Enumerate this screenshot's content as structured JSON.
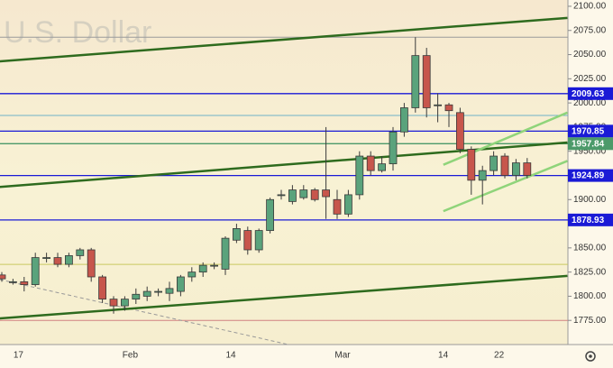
{
  "chart_data": {
    "type": "candlestick",
    "watermark": "U.S. Dollar",
    "ylim": [
      1750,
      2106.5
    ],
    "yticks": [
      {
        "value": 1775,
        "label": "1775.00"
      },
      {
        "value": 1800,
        "label": "1800.00"
      },
      {
        "value": 1825,
        "label": "1825.00"
      },
      {
        "value": 1850,
        "label": "1850.00"
      },
      {
        "value": 1875,
        "label": "1875.00"
      },
      {
        "value": 1900,
        "label": "1900.00"
      },
      {
        "value": 1925,
        "label": "1925.00"
      },
      {
        "value": 1950,
        "label": "1950.00"
      },
      {
        "value": 1975,
        "label": "1975.00"
      },
      {
        "value": 2000,
        "label": "2000.00"
      },
      {
        "value": 2025,
        "label": "2025.00"
      },
      {
        "value": 2050,
        "label": "2050.00"
      },
      {
        "value": 2075,
        "label": "2075.00"
      },
      {
        "value": 2100,
        "label": "2100.00"
      }
    ],
    "up_color": "#5aa37c",
    "down_color": "#c7564c",
    "categories": [
      null,
      "17",
      null,
      null,
      null,
      null,
      null,
      null,
      null,
      null,
      null,
      "Feb",
      null,
      null,
      null,
      null,
      null,
      null,
      null,
      null,
      "14",
      null,
      null,
      null,
      null,
      null,
      null,
      null,
      null,
      null,
      "Mar",
      null,
      null,
      null,
      null,
      null,
      null,
      null,
      null,
      "14",
      null,
      null,
      null,
      null,
      "22",
      null,
      null,
      null
    ],
    "open": [
      1822,
      1815,
      1815,
      1812,
      1840,
      1840,
      1833,
      1842,
      1848,
      1820,
      1797,
      1790,
      1797,
      1800,
      1805,
      1803,
      1805,
      1820,
      1825,
      1832,
      1828,
      1858,
      1868,
      1848,
      1868,
      1905,
      1898,
      1902,
      1910,
      1910,
      1900,
      1885,
      1905,
      1945,
      1930,
      1937,
      1970,
      1995,
      2049,
      1998,
      1998,
      1990,
      1952,
      1920,
      1930,
      1945,
      1925,
      1938
    ],
    "high": [
      1825,
      1818,
      1820,
      1845,
      1845,
      1845,
      1845,
      1850,
      1850,
      1822,
      1800,
      1800,
      1808,
      1810,
      1808,
      1815,
      1822,
      1830,
      1835,
      1835,
      1862,
      1875,
      1872,
      1870,
      1902,
      1910,
      1915,
      1915,
      1912,
      1975,
      1910,
      1910,
      1950,
      1950,
      1945,
      1975,
      2000,
      2068,
      2057,
      2010,
      2000,
      1995,
      1955,
      1935,
      1950,
      1948,
      1942,
      1943
    ],
    "low": [
      1815,
      1812,
      1805,
      1810,
      1835,
      1830,
      1830,
      1838,
      1815,
      1793,
      1782,
      1785,
      1792,
      1795,
      1800,
      1795,
      1800,
      1815,
      1820,
      1828,
      1822,
      1855,
      1843,
      1845,
      1865,
      1900,
      1895,
      1900,
      1898,
      1880,
      1880,
      1882,
      1900,
      1925,
      1928,
      1930,
      1965,
      1990,
      1985,
      1980,
      1975,
      1948,
      1905,
      1895,
      1925,
      1922,
      1920,
      1922
    ],
    "close": [
      1818,
      1815,
      1812,
      1840,
      1840,
      1833,
      1842,
      1848,
      1820,
      1797,
      1790,
      1797,
      1802,
      1805,
      1805,
      1808,
      1820,
      1825,
      1832,
      1832,
      1860,
      1870,
      1848,
      1868,
      1900,
      1905,
      1910,
      1910,
      1900,
      1903,
      1885,
      1905,
      1945,
      1930,
      1937,
      1970,
      1995,
      2049,
      1995,
      1998,
      1992,
      1952,
      1920,
      1930,
      1945,
      1925,
      1938,
      1925
    ],
    "levels": [
      {
        "value": 2009.63,
        "color": "#1a1ad6"
      },
      {
        "value": 1970.85,
        "color": "#1a1ad6"
      },
      {
        "value": 1957.84,
        "color": "#4c9a6a"
      },
      {
        "value": 1924.89,
        "color": "#1a1ad6"
      },
      {
        "value": 1878.93,
        "color": "#1a1ad6"
      }
    ],
    "lines": [
      {
        "value": 2068,
        "color": "#9a9a9a"
      },
      {
        "value": 1987,
        "color": "#6fb3c8"
      },
      {
        "value": 1833,
        "color": "#c8c860"
      },
      {
        "value": 1775,
        "color": "#d08080"
      }
    ],
    "trend_lines": [
      {
        "color": "#2e6b1e",
        "start": [
          -0.2,
          2043
        ],
        "end": [
          50.6,
          2088
        ]
      },
      {
        "color": "#2e6b1e",
        "start": [
          -0.2,
          1913
        ],
        "end": [
          50.6,
          1959
        ]
      },
      {
        "color": "#2e6b1e",
        "start": [
          -0.2,
          1777
        ],
        "end": [
          50.6,
          1821
        ]
      },
      {
        "color": "#8fd47a",
        "start": [
          39.5,
          1888
        ],
        "end": [
          50.6,
          1940
        ]
      },
      {
        "color": "#8fd47a",
        "start": [
          39.5,
          1936
        ],
        "end": [
          50.6,
          1990
        ]
      }
    ]
  }
}
